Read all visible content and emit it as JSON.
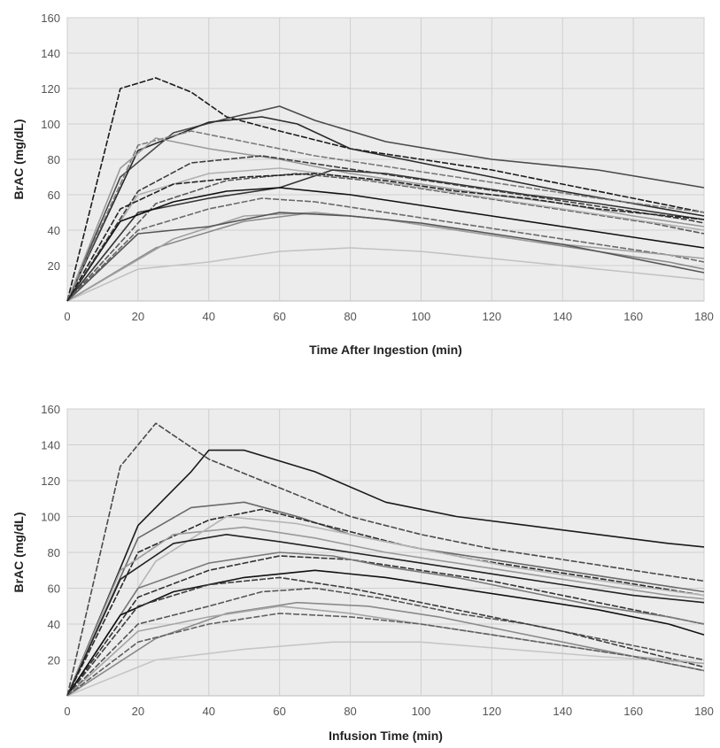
{
  "figure": {
    "panels": [
      {
        "xlabel": "Time After Ingestion (min)",
        "ylabel": "BrAC (mg/dL)"
      },
      {
        "xlabel": "Infusion Time (min)",
        "ylabel": "BrAC (mg/dL)"
      }
    ]
  },
  "chart_data": [
    {
      "type": "line",
      "title": "",
      "xlabel": "Time After Ingestion (min)",
      "ylabel": "BrAC (mg/dL)",
      "xlim": [
        0,
        180
      ],
      "ylim": [
        0,
        160
      ],
      "xticks": [
        0,
        20,
        40,
        60,
        80,
        100,
        120,
        140,
        160,
        180
      ],
      "xtick_labels": [
        "0",
        "20",
        "40",
        "60",
        "80",
        "100",
        "120",
        "140",
        "160",
        "180"
      ],
      "yticks": [
        20,
        40,
        60,
        80,
        100,
        120,
        140,
        160
      ],
      "ytick_labels": [
        "20",
        "40",
        "60",
        "80",
        "100",
        "120",
        "140",
        "160"
      ],
      "grid": true,
      "background": "#ececec",
      "series": [
        {
          "color": "#1a1a1a",
          "x": [
            0,
            15,
            25,
            35,
            45,
            60,
            80,
            100,
            120,
            140,
            160,
            180
          ],
          "y": [
            0,
            120,
            126,
            118,
            104,
            96,
            86,
            80,
            74,
            66,
            58,
            50
          ]
        },
        {
          "color": "#4a4a4a",
          "x": [
            0,
            15,
            30,
            45,
            60,
            70,
            90,
            120,
            150,
            180
          ],
          "y": [
            0,
            70,
            95,
            103,
            110,
            102,
            90,
            80,
            74,
            64
          ]
        },
        {
          "color": "#2a2a2a",
          "x": [
            0,
            20,
            40,
            55,
            65,
            80,
            100,
            120,
            140,
            160,
            180
          ],
          "y": [
            0,
            85,
            101,
            104,
            100,
            86,
            78,
            70,
            62,
            55,
            48
          ]
        },
        {
          "color": "#7a7a7a",
          "x": [
            0,
            20,
            35,
            50,
            70,
            90,
            110,
            130,
            150,
            180
          ],
          "y": [
            0,
            88,
            96,
            90,
            82,
            76,
            70,
            64,
            58,
            50
          ]
        },
        {
          "color": "#9a9a9a",
          "x": [
            0,
            15,
            25,
            40,
            60,
            80,
            100,
            120,
            140,
            160,
            180
          ],
          "y": [
            0,
            75,
            92,
            86,
            80,
            72,
            66,
            60,
            55,
            48,
            42
          ]
        },
        {
          "color": "#333333",
          "x": [
            0,
            20,
            40,
            60,
            75,
            90,
            110,
            130,
            150,
            180
          ],
          "y": [
            0,
            50,
            58,
            64,
            74,
            72,
            66,
            60,
            55,
            46
          ]
        },
        {
          "color": "#5a5a5a",
          "x": [
            0,
            25,
            45,
            65,
            85,
            105,
            125,
            145,
            165,
            180
          ],
          "y": [
            0,
            55,
            68,
            72,
            68,
            62,
            56,
            50,
            44,
            38
          ]
        },
        {
          "color": "#b0b0b0",
          "x": [
            0,
            20,
            40,
            60,
            80,
            100,
            120,
            140,
            160,
            180
          ],
          "y": [
            0,
            60,
            72,
            75,
            70,
            64,
            58,
            52,
            46,
            40
          ]
        },
        {
          "color": "#111111",
          "x": [
            0,
            15,
            30,
            45,
            60,
            80,
            100,
            120,
            140,
            160,
            180
          ],
          "y": [
            0,
            45,
            56,
            62,
            64,
            60,
            54,
            48,
            42,
            36,
            30
          ]
        },
        {
          "color": "#6a6a6a",
          "x": [
            0,
            20,
            40,
            55,
            70,
            90,
            110,
            130,
            150,
            170,
            180
          ],
          "y": [
            0,
            40,
            52,
            58,
            56,
            50,
            44,
            38,
            32,
            26,
            22
          ]
        },
        {
          "color": "#8a8a8a",
          "x": [
            0,
            25,
            50,
            70,
            90,
            110,
            130,
            150,
            170,
            180
          ],
          "y": [
            0,
            30,
            45,
            50,
            46,
            40,
            34,
            28,
            22,
            18
          ]
        },
        {
          "color": "#c2c2c2",
          "x": [
            0,
            20,
            40,
            60,
            80,
            100,
            120,
            140,
            160,
            180
          ],
          "y": [
            0,
            18,
            22,
            28,
            30,
            28,
            24,
            20,
            16,
            12
          ]
        },
        {
          "color": "#3d3d3d",
          "x": [
            0,
            20,
            35,
            55,
            75,
            95,
            115,
            135,
            155,
            175,
            180
          ],
          "y": [
            0,
            62,
            78,
            82,
            76,
            70,
            64,
            58,
            52,
            46,
            44
          ]
        },
        {
          "color": "#a0a0a0",
          "x": [
            0,
            30,
            50,
            70,
            90,
            110,
            130,
            150,
            170,
            180
          ],
          "y": [
            0,
            35,
            48,
            50,
            46,
            40,
            34,
            30,
            26,
            24
          ]
        },
        {
          "color": "#555555",
          "x": [
            0,
            20,
            40,
            60,
            80,
            100,
            120,
            140,
            160,
            180
          ],
          "y": [
            0,
            38,
            42,
            50,
            48,
            44,
            38,
            32,
            24,
            16
          ]
        },
        {
          "color": "#222222",
          "x": [
            0,
            15,
            30,
            50,
            70,
            90,
            110,
            130,
            150,
            170,
            180
          ],
          "y": [
            0,
            52,
            66,
            70,
            72,
            68,
            62,
            58,
            52,
            48,
            46
          ]
        }
      ]
    },
    {
      "type": "line",
      "title": "",
      "xlabel": "Infusion Time (min)",
      "ylabel": "BrAC (mg/dL)",
      "xlim": [
        0,
        180
      ],
      "ylim": [
        0,
        160
      ],
      "xticks": [
        0,
        20,
        40,
        60,
        80,
        100,
        120,
        140,
        160,
        180
      ],
      "xtick_labels": [
        "0",
        "20",
        "40",
        "60",
        "80",
        "100",
        "120",
        "140",
        "160",
        "180"
      ],
      "yticks": [
        20,
        40,
        60,
        80,
        100,
        120,
        140,
        160
      ],
      "ytick_labels": [
        "20",
        "40",
        "60",
        "80",
        "100",
        "120",
        "140",
        "160"
      ],
      "grid": true,
      "background": "#ececec",
      "series": [
        {
          "color": "#4a4a4a",
          "x": [
            0,
            15,
            25,
            40,
            60,
            80,
            100,
            120,
            140,
            160,
            180
          ],
          "y": [
            0,
            128,
            152,
            132,
            116,
            100,
            90,
            82,
            76,
            70,
            64
          ]
        },
        {
          "color": "#1a1a1a",
          "x": [
            0,
            20,
            35,
            40,
            50,
            70,
            90,
            110,
            130,
            150,
            170,
            180
          ],
          "y": [
            0,
            95,
            125,
            137,
            137,
            125,
            108,
            100,
            95,
            90,
            85,
            83
          ]
        },
        {
          "color": "#6a6a6a",
          "x": [
            0,
            20,
            35,
            50,
            65,
            80,
            100,
            120,
            140,
            160,
            180
          ],
          "y": [
            0,
            88,
            105,
            108,
            100,
            90,
            82,
            76,
            70,
            64,
            58
          ]
        },
        {
          "color": "#2a2a2a",
          "x": [
            0,
            20,
            40,
            55,
            75,
            95,
            115,
            135,
            155,
            180
          ],
          "y": [
            0,
            80,
            98,
            104,
            94,
            84,
            76,
            70,
            64,
            56
          ]
        },
        {
          "color": "#9a9a9a",
          "x": [
            0,
            15,
            30,
            50,
            70,
            90,
            110,
            130,
            150,
            170,
            180
          ],
          "y": [
            0,
            70,
            90,
            94,
            88,
            80,
            74,
            68,
            62,
            56,
            54
          ]
        },
        {
          "color": "#b5b5b5",
          "x": [
            0,
            25,
            45,
            65,
            85,
            105,
            125,
            145,
            165,
            180
          ],
          "y": [
            0,
            75,
            100,
            96,
            88,
            80,
            72,
            66,
            60,
            56
          ]
        },
        {
          "color": "#333333",
          "x": [
            0,
            20,
            40,
            60,
            80,
            100,
            120,
            140,
            160,
            180
          ],
          "y": [
            0,
            55,
            70,
            78,
            76,
            70,
            64,
            56,
            48,
            40
          ]
        },
        {
          "color": "#7a7a7a",
          "x": [
            0,
            20,
            40,
            60,
            75,
            90,
            110,
            130,
            150,
            170,
            180
          ],
          "y": [
            0,
            60,
            74,
            80,
            78,
            72,
            66,
            58,
            50,
            44,
            40
          ]
        },
        {
          "color": "#111111",
          "x": [
            0,
            15,
            30,
            50,
            70,
            90,
            110,
            130,
            150,
            170,
            180
          ],
          "y": [
            0,
            45,
            58,
            66,
            70,
            66,
            60,
            54,
            48,
            40,
            34
          ]
        },
        {
          "color": "#555555",
          "x": [
            0,
            20,
            40,
            55,
            70,
            90,
            110,
            130,
            150,
            170,
            180
          ],
          "y": [
            0,
            40,
            50,
            58,
            60,
            54,
            46,
            40,
            32,
            24,
            20
          ]
        },
        {
          "color": "#8a8a8a",
          "x": [
            0,
            25,
            45,
            65,
            85,
            105,
            125,
            145,
            165,
            180
          ],
          "y": [
            0,
            32,
            46,
            52,
            50,
            44,
            36,
            28,
            20,
            14
          ]
        },
        {
          "color": "#c6c6c6",
          "x": [
            0,
            25,
            50,
            75,
            100,
            125,
            150,
            180
          ],
          "y": [
            0,
            20,
            26,
            30,
            30,
            26,
            22,
            18
          ]
        },
        {
          "color": "#3d3d3d",
          "x": [
            0,
            20,
            40,
            60,
            80,
            100,
            120,
            140,
            160,
            180
          ],
          "y": [
            0,
            50,
            62,
            66,
            60,
            52,
            44,
            36,
            26,
            16
          ]
        },
        {
          "color": "#a5a5a5",
          "x": [
            0,
            20,
            40,
            60,
            80,
            100,
            120,
            140,
            160,
            180
          ],
          "y": [
            0,
            36,
            44,
            50,
            46,
            40,
            34,
            28,
            22,
            18
          ]
        },
        {
          "color": "#222222",
          "x": [
            0,
            15,
            30,
            45,
            60,
            80,
            100,
            120,
            140,
            160,
            180
          ],
          "y": [
            0,
            65,
            85,
            90,
            86,
            80,
            74,
            68,
            62,
            56,
            52
          ]
        },
        {
          "color": "#606060",
          "x": [
            0,
            20,
            40,
            60,
            80,
            100,
            120,
            140,
            160,
            180
          ],
          "y": [
            0,
            30,
            40,
            46,
            44,
            40,
            34,
            28,
            22,
            14
          ]
        }
      ]
    }
  ]
}
